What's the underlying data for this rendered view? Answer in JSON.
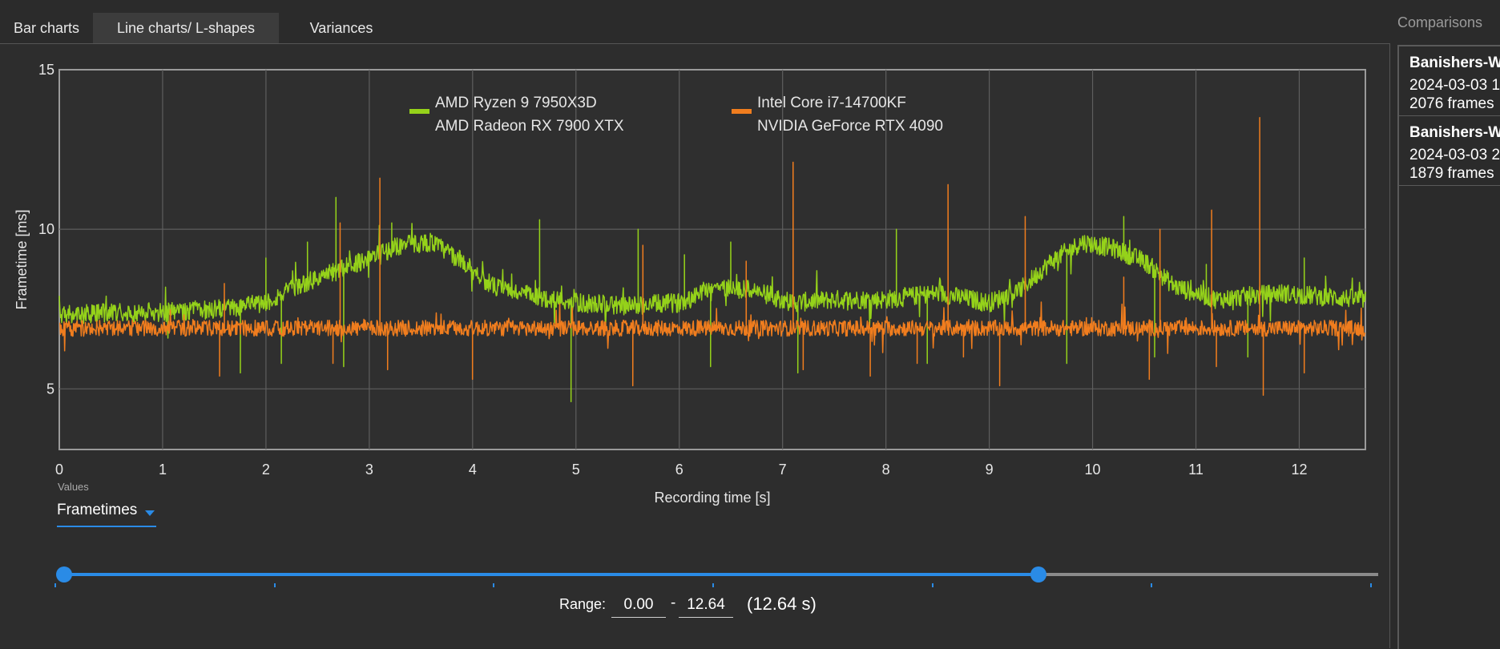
{
  "tabs": [
    {
      "label": "Bar charts",
      "active": false
    },
    {
      "label": "Line charts/ L-shapes",
      "active": true
    },
    {
      "label": "Variances",
      "active": false
    }
  ],
  "sidebar": {
    "title": "Comparisons",
    "items": [
      {
        "title": "Banishers-W",
        "date": "2024-03-03 1",
        "frames": "2076 frames"
      },
      {
        "title": "Banishers-W",
        "date": "2024-03-03 2",
        "frames": "1879 frames"
      }
    ]
  },
  "controls": {
    "values_caption": "Values",
    "values_selected": "Frametimes",
    "range_label": "Range:",
    "range_start": "0.00",
    "range_dash": "-",
    "range_end": "12.64",
    "range_total": "(12.64 s)",
    "range_min": 0,
    "range_max": 12.64,
    "slider_lower_fraction": 0.0,
    "slider_upper_fraction": 0.746,
    "slider_tick_count": 7
  },
  "colors": {
    "series_green": "#95d21a",
    "series_orange": "#f07d1e",
    "accent": "#2a8be6",
    "grid": "#5e5e5e",
    "plot_background": "#2f2f2f"
  },
  "chart_data": {
    "type": "line",
    "title": "",
    "xlabel": "Recording time [s]",
    "ylabel": "Frametime [ms]",
    "xlim": [
      0,
      12.64
    ],
    "ylim": [
      3.1,
      15
    ],
    "xticks": [
      0,
      1,
      2,
      3,
      4,
      5,
      6,
      7,
      8,
      9,
      10,
      11,
      12
    ],
    "yticks": [
      5,
      10,
      15
    ],
    "grid": true,
    "legend_position": "top-center",
    "series": [
      {
        "name": "AMD Ryzen 9 7950X3D",
        "name_line2": "AMD Radeon RX 7900 XTX",
        "color": "#95d21a",
        "baseline": [
          [
            0,
            7.3
          ],
          [
            0.5,
            7.4
          ],
          [
            1,
            7.4
          ],
          [
            1.5,
            7.5
          ],
          [
            1.8,
            7.6
          ],
          [
            2,
            7.7
          ],
          [
            2.3,
            8.2
          ],
          [
            2.6,
            8.6
          ],
          [
            3,
            9.1
          ],
          [
            3.3,
            9.5
          ],
          [
            3.6,
            9.6
          ],
          [
            3.9,
            9.0
          ],
          [
            4.2,
            8.2
          ],
          [
            4.6,
            7.9
          ],
          [
            5,
            7.7
          ],
          [
            5.5,
            7.6
          ],
          [
            6,
            7.7
          ],
          [
            6.3,
            8.2
          ],
          [
            6.7,
            8.1
          ],
          [
            7.1,
            7.7
          ],
          [
            7.5,
            7.8
          ],
          [
            8,
            7.8
          ],
          [
            8.5,
            8.0
          ],
          [
            9,
            7.7
          ],
          [
            9.3,
            8.1
          ],
          [
            9.6,
            9.0
          ],
          [
            9.9,
            9.6
          ],
          [
            10.2,
            9.4
          ],
          [
            10.5,
            9.0
          ],
          [
            10.8,
            8.2
          ],
          [
            11.2,
            7.8
          ],
          [
            11.5,
            7.9
          ],
          [
            11.8,
            8.0
          ],
          [
            12.2,
            7.9
          ],
          [
            12.64,
            7.8
          ]
        ],
        "noise": 0.3,
        "spikes": [
          [
            1.75,
            5.5
          ],
          [
            2.0,
            9.1
          ],
          [
            2.15,
            5.8
          ],
          [
            2.4,
            9.6
          ],
          [
            2.68,
            11.0
          ],
          [
            2.75,
            5.7
          ],
          [
            3.22,
            10.2
          ],
          [
            4.65,
            10.3
          ],
          [
            4.95,
            4.6
          ],
          [
            5.6,
            10.0
          ],
          [
            6.05,
            9.2
          ],
          [
            6.3,
            5.7
          ],
          [
            6.5,
            9.6
          ],
          [
            7.15,
            5.5
          ],
          [
            8.1,
            10.0
          ],
          [
            8.4,
            5.8
          ],
          [
            9.75,
            5.8
          ],
          [
            10.3,
            10.4
          ],
          [
            10.6,
            6.0
          ],
          [
            11.1,
            8.9
          ],
          [
            11.5,
            6.0
          ],
          [
            12.05,
            9.1
          ]
        ]
      },
      {
        "name": "Intel Core i7-14700KF",
        "name_line2": "NVIDIA GeForce RTX 4090",
        "color": "#f07d1e",
        "baseline": [
          [
            0,
            6.9
          ],
          [
            12.64,
            6.9
          ]
        ],
        "noise": 0.25,
        "spikes": [
          [
            1.55,
            5.4
          ],
          [
            1.6,
            8.3
          ],
          [
            2.65,
            5.8
          ],
          [
            2.72,
            10.2
          ],
          [
            3.1,
            11.6
          ],
          [
            3.18,
            5.6
          ],
          [
            4.0,
            5.3
          ],
          [
            5.55,
            5.1
          ],
          [
            5.65,
            9.5
          ],
          [
            6.65,
            9.0
          ],
          [
            7.1,
            12.1
          ],
          [
            7.2,
            5.6
          ],
          [
            7.85,
            5.4
          ],
          [
            8.3,
            5.8
          ],
          [
            8.6,
            11.4
          ],
          [
            8.75,
            6.0
          ],
          [
            9.1,
            5.1
          ],
          [
            9.35,
            10.4
          ],
          [
            10.3,
            8.5
          ],
          [
            10.55,
            5.3
          ],
          [
            10.65,
            10.0
          ],
          [
            11.15,
            10.6
          ],
          [
            11.2,
            5.7
          ],
          [
            11.62,
            13.5
          ],
          [
            11.65,
            4.8
          ],
          [
            12.05,
            5.5
          ]
        ]
      }
    ]
  }
}
